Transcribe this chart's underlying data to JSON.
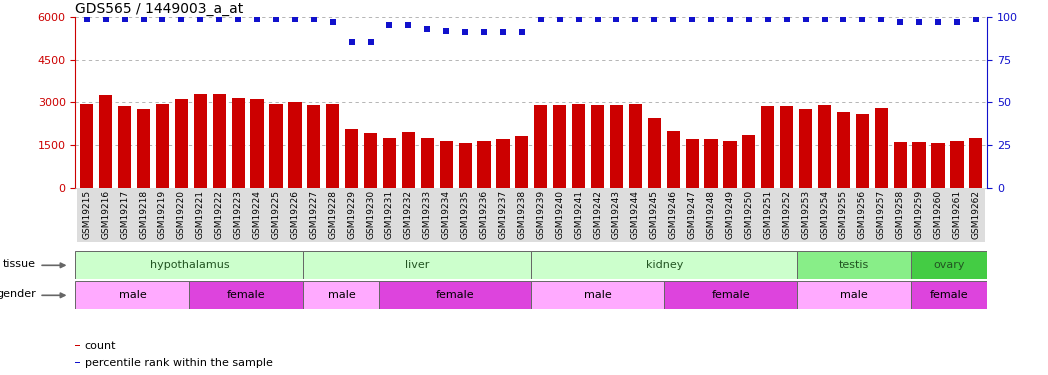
{
  "title": "GDS565 / 1449003_a_at",
  "samples": [
    "GSM19215",
    "GSM19216",
    "GSM19217",
    "GSM19218",
    "GSM19219",
    "GSM19220",
    "GSM19221",
    "GSM19222",
    "GSM19223",
    "GSM19224",
    "GSM19225",
    "GSM19226",
    "GSM19227",
    "GSM19228",
    "GSM19229",
    "GSM19230",
    "GSM19231",
    "GSM19232",
    "GSM19233",
    "GSM19234",
    "GSM19235",
    "GSM19236",
    "GSM19237",
    "GSM19238",
    "GSM19239",
    "GSM19240",
    "GSM19241",
    "GSM19242",
    "GSM19243",
    "GSM19244",
    "GSM19245",
    "GSM19246",
    "GSM19247",
    "GSM19248",
    "GSM19249",
    "GSM19250",
    "GSM19251",
    "GSM19252",
    "GSM19253",
    "GSM19254",
    "GSM19255",
    "GSM19256",
    "GSM19257",
    "GSM19258",
    "GSM19259",
    "GSM19260",
    "GSM19261",
    "GSM19262"
  ],
  "counts": [
    2950,
    3250,
    2850,
    2750,
    2950,
    3100,
    3300,
    3300,
    3150,
    3100,
    2950,
    3000,
    2900,
    2950,
    2050,
    1900,
    1750,
    1950,
    1750,
    1650,
    1550,
    1650,
    1700,
    1800,
    2900,
    2900,
    2950,
    2900,
    2900,
    2950,
    2450,
    2000,
    1700,
    1700,
    1650,
    1850,
    2850,
    2850,
    2750,
    2900,
    2650,
    2600,
    2800,
    1600,
    1600,
    1550,
    1650,
    1750
  ],
  "percentile": [
    99,
    99,
    99,
    99,
    99,
    99,
    99,
    99,
    99,
    99,
    99,
    99,
    99,
    97,
    85,
    85,
    95,
    95,
    93,
    92,
    91,
    91,
    91,
    91,
    99,
    99,
    99,
    99,
    99,
    99,
    99,
    99,
    99,
    99,
    99,
    99,
    99,
    99,
    99,
    99,
    99,
    99,
    99,
    97,
    97,
    97,
    97,
    99
  ],
  "ylim_left": [
    0,
    6000
  ],
  "yticks_left": [
    0,
    1500,
    3000,
    4500,
    6000
  ],
  "ylim_right": [
    0,
    100
  ],
  "yticks_right": [
    0,
    25,
    50,
    75,
    100
  ],
  "bar_color": "#cc0000",
  "dot_color": "#1111cc",
  "background_color": "#ffffff",
  "grid_color": "#aaaaaa",
  "tick_color_left": "#cc0000",
  "tick_color_right": "#1111cc",
  "label_fontsize": 6.5,
  "tick_fontsize": 8,
  "title_fontsize": 10,
  "tissue_groups": [
    {
      "label": "hypothalamus",
      "start": 0,
      "end": 11,
      "color": "#ccffcc"
    },
    {
      "label": "liver",
      "start": 12,
      "end": 23,
      "color": "#ccffcc"
    },
    {
      "label": "kidney",
      "start": 24,
      "end": 37,
      "color": "#ccffcc"
    },
    {
      "label": "testis",
      "start": 38,
      "end": 43,
      "color": "#88ee88"
    },
    {
      "label": "ovary",
      "start": 44,
      "end": 47,
      "color": "#44cc44"
    }
  ],
  "gender_groups": [
    {
      "label": "male",
      "start": 0,
      "end": 5,
      "color": "#ffaaff"
    },
    {
      "label": "female",
      "start": 6,
      "end": 11,
      "color": "#dd44dd"
    },
    {
      "label": "male",
      "start": 12,
      "end": 15,
      "color": "#ffaaff"
    },
    {
      "label": "female",
      "start": 16,
      "end": 23,
      "color": "#dd44dd"
    },
    {
      "label": "male",
      "start": 24,
      "end": 30,
      "color": "#ffaaff"
    },
    {
      "label": "female",
      "start": 31,
      "end": 37,
      "color": "#dd44dd"
    },
    {
      "label": "male",
      "start": 38,
      "end": 43,
      "color": "#ffaaff"
    },
    {
      "label": "female",
      "start": 44,
      "end": 47,
      "color": "#dd44dd"
    }
  ],
  "legend_items": [
    {
      "label": "count",
      "color": "#cc0000"
    },
    {
      "label": "percentile rank within the sample",
      "color": "#1111cc"
    }
  ]
}
